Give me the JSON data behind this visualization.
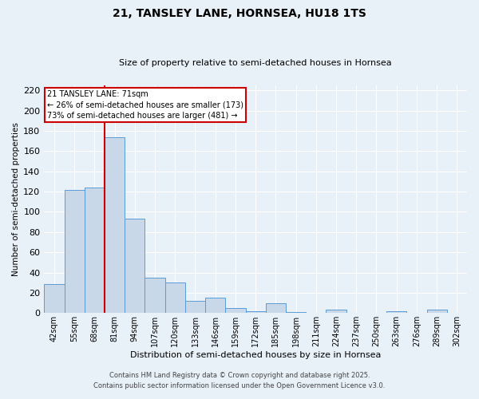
{
  "title": "21, TANSLEY LANE, HORNSEA, HU18 1TS",
  "subtitle": "Size of property relative to semi-detached houses in Hornsea",
  "xlabel": "Distribution of semi-detached houses by size in Hornsea",
  "ylabel": "Number of semi-detached properties",
  "bin_labels": [
    "42sqm",
    "55sqm",
    "68sqm",
    "81sqm",
    "94sqm",
    "107sqm",
    "120sqm",
    "133sqm",
    "146sqm",
    "159sqm",
    "172sqm",
    "185sqm",
    "198sqm",
    "211sqm",
    "224sqm",
    "237sqm",
    "250sqm",
    "263sqm",
    "276sqm",
    "289sqm",
    "302sqm"
  ],
  "bar_values": [
    29,
    122,
    124,
    174,
    93,
    35,
    30,
    12,
    15,
    5,
    2,
    10,
    1,
    0,
    3,
    0,
    0,
    2,
    0,
    3,
    0
  ],
  "bar_color": "#c8d8e8",
  "bar_edge_color": "#5b9bd5",
  "vline_color": "#cc0000",
  "annotation_text": "21 TANSLEY LANE: 71sqm\n← 26% of semi-detached houses are smaller (173)\n73% of semi-detached houses are larger (481) →",
  "annotation_box_color": "#ffffff",
  "annotation_box_edge": "#cc0000",
  "ylim": [
    0,
    225
  ],
  "yticks": [
    0,
    20,
    40,
    60,
    80,
    100,
    120,
    140,
    160,
    180,
    200,
    220
  ],
  "bg_color": "#e8f0f8",
  "grid_color": "#ffffff",
  "footer1": "Contains HM Land Registry data © Crown copyright and database right 2025.",
  "footer2": "Contains public sector information licensed under the Open Government Licence v3.0."
}
